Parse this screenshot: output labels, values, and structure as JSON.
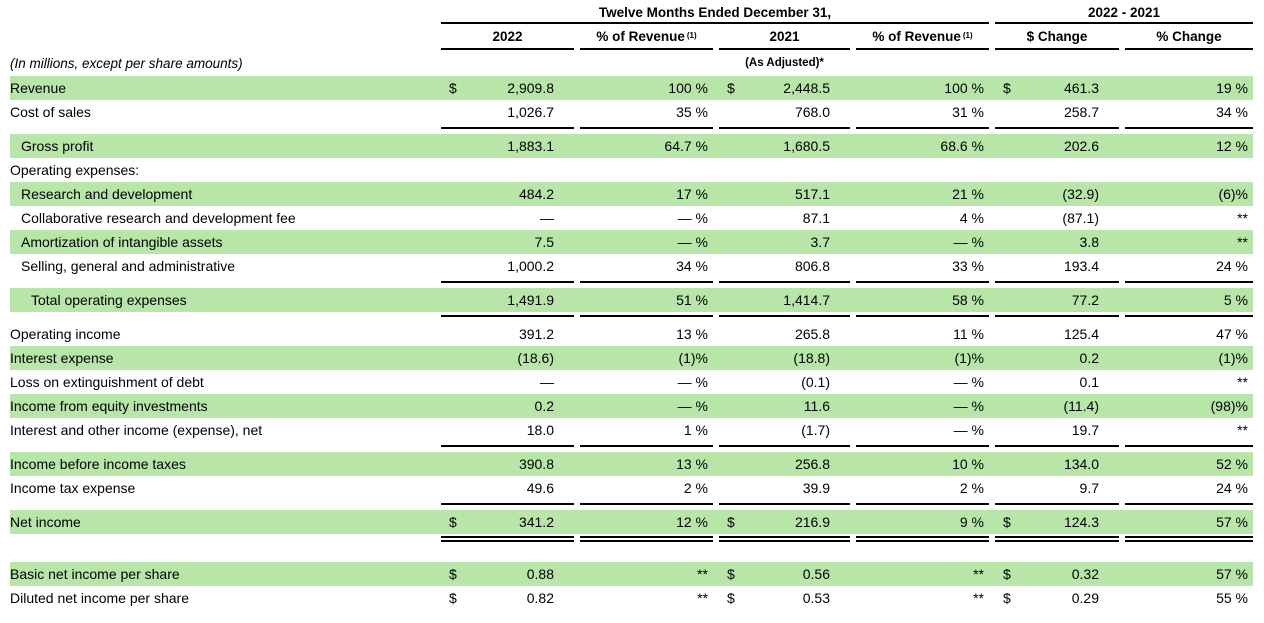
{
  "colors": {
    "row_highlight": "#b7e6a8",
    "rule": "#000000"
  },
  "note": "(In millions, except per share amounts)",
  "header": {
    "period_group": "Twelve Months Ended December 31,",
    "change_group": "2022 - 2021",
    "col_2022": "2022",
    "col_pct_revenue": "% of Revenue",
    "pct_revenue_sup": "(1)",
    "col_2021": "2021",
    "col_dollar_change": "$ Change",
    "col_pct_change": "% Change",
    "as_adjusted": "(As Adjusted)*"
  },
  "rows": [
    {
      "label": "Revenue",
      "indent": 0,
      "shaded": true,
      "d1": "$",
      "v1": "2,909.8",
      "p1": "100 %",
      "d2": "$",
      "v2": "2,448.5",
      "p2": "100 %",
      "d3": "$",
      "v3": "461.3",
      "p3": "19 %",
      "rule_after": null
    },
    {
      "label": "Cost of sales",
      "indent": 0,
      "shaded": false,
      "d1": "",
      "v1": "1,026.7",
      "p1": "35 %",
      "d2": "",
      "v2": "768.0",
      "p2": "31 %",
      "d3": "",
      "v3": "258.7",
      "p3": "34 %",
      "rule_after": "single"
    },
    {
      "label": "Gross profit",
      "indent": 1,
      "shaded": true,
      "d1": "",
      "v1": "1,883.1",
      "p1": "64.7 %",
      "d2": "",
      "v2": "1,680.5",
      "p2": "68.6 %",
      "d3": "",
      "v3": "202.6",
      "p3": "12 %",
      "rule_after": null
    },
    {
      "label": "Operating expenses:",
      "indent": 0,
      "shaded": false,
      "d1": "",
      "v1": "",
      "p1": "",
      "d2": "",
      "v2": "",
      "p2": "",
      "d3": "",
      "v3": "",
      "p3": "",
      "rule_after": null
    },
    {
      "label": "Research and development",
      "indent": 1,
      "shaded": true,
      "d1": "",
      "v1": "484.2",
      "p1": "17 %",
      "d2": "",
      "v2": "517.1",
      "p2": "21 %",
      "d3": "",
      "v3": "(32.9)",
      "p3": "(6)%",
      "rule_after": null
    },
    {
      "label": "Collaborative research and development fee",
      "indent": 1,
      "shaded": false,
      "d1": "",
      "v1": "—",
      "p1": "— %",
      "d2": "",
      "v2": "87.1",
      "p2": "4 %",
      "d3": "",
      "v3": "(87.1)",
      "p3": "**",
      "rule_after": null
    },
    {
      "label": "Amortization of intangible assets",
      "indent": 1,
      "shaded": true,
      "d1": "",
      "v1": "7.5",
      "p1": "— %",
      "d2": "",
      "v2": "3.7",
      "p2": "— %",
      "d3": "",
      "v3": "3.8",
      "p3": "**",
      "rule_after": null
    },
    {
      "label": "Selling, general and administrative",
      "indent": 1,
      "shaded": false,
      "d1": "",
      "v1": "1,000.2",
      "p1": "34 %",
      "d2": "",
      "v2": "806.8",
      "p2": "33 %",
      "d3": "",
      "v3": "193.4",
      "p3": "24 %",
      "rule_after": "single"
    },
    {
      "label": "Total operating expenses",
      "indent": 2,
      "shaded": true,
      "d1": "",
      "v1": "1,491.9",
      "p1": "51 %",
      "d2": "",
      "v2": "1,414.7",
      "p2": "58 %",
      "d3": "",
      "v3": "77.2",
      "p3": "5 %",
      "rule_after": "single"
    },
    {
      "label": "Operating income",
      "indent": 0,
      "shaded": false,
      "d1": "",
      "v1": "391.2",
      "p1": "13 %",
      "d2": "",
      "v2": "265.8",
      "p2": "11 %",
      "d3": "",
      "v3": "125.4",
      "p3": "47 %",
      "rule_after": null
    },
    {
      "label": "Interest expense",
      "indent": 0,
      "shaded": true,
      "d1": "",
      "v1": "(18.6)",
      "p1": "(1)%",
      "d2": "",
      "v2": "(18.8)",
      "p2": "(1)%",
      "d3": "",
      "v3": "0.2",
      "p3": "(1)%",
      "rule_after": null
    },
    {
      "label": "Loss on extinguishment of debt",
      "indent": 0,
      "shaded": false,
      "d1": "",
      "v1": "—",
      "p1": "— %",
      "d2": "",
      "v2": "(0.1)",
      "p2": "— %",
      "d3": "",
      "v3": "0.1",
      "p3": "**",
      "rule_after": null
    },
    {
      "label": "Income from equity investments",
      "indent": 0,
      "shaded": true,
      "d1": "",
      "v1": "0.2",
      "p1": "— %",
      "d2": "",
      "v2": "11.6",
      "p2": "— %",
      "d3": "",
      "v3": "(11.4)",
      "p3": "(98)%",
      "rule_after": null
    },
    {
      "label": "Interest and other income (expense), net",
      "indent": 0,
      "shaded": false,
      "d1": "",
      "v1": "18.0",
      "p1": "1 %",
      "d2": "",
      "v2": "(1.7)",
      "p2": "— %",
      "d3": "",
      "v3": "19.7",
      "p3": "**",
      "rule_after": "single"
    },
    {
      "label": "Income before income taxes",
      "indent": 0,
      "shaded": true,
      "d1": "",
      "v1": "390.8",
      "p1": "13 %",
      "d2": "",
      "v2": "256.8",
      "p2": "10 %",
      "d3": "",
      "v3": "134.0",
      "p3": "52 %",
      "rule_after": null
    },
    {
      "label": "Income tax expense",
      "indent": 0,
      "shaded": false,
      "d1": "",
      "v1": "49.6",
      "p1": "2 %",
      "d2": "",
      "v2": "39.9",
      "p2": "2 %",
      "d3": "",
      "v3": "9.7",
      "p3": "24 %",
      "rule_after": "single"
    },
    {
      "label": "Net income",
      "indent": 0,
      "shaded": true,
      "d1": "$",
      "v1": "341.2",
      "p1": "12 %",
      "d2": "$",
      "v2": "216.9",
      "p2": "9 %",
      "d3": "$",
      "v3": "124.3",
      "p3": "57 %",
      "rule_after": "double"
    },
    {
      "blank": true
    },
    {
      "label": "Basic net income per share",
      "indent": 0,
      "shaded": true,
      "d1": "$",
      "v1": "0.88",
      "p1": "**",
      "d2": "$",
      "v2": "0.56",
      "p2": "**",
      "d3": "$",
      "v3": "0.32",
      "p3": "57 %",
      "rule_after": null
    },
    {
      "label": "Diluted net income per share",
      "indent": 0,
      "shaded": false,
      "d1": "$",
      "v1": "0.82",
      "p1": "**",
      "d2": "$",
      "v2": "0.53",
      "p2": "**",
      "d3": "$",
      "v3": "0.29",
      "p3": "55 %",
      "rule_after": null
    }
  ]
}
